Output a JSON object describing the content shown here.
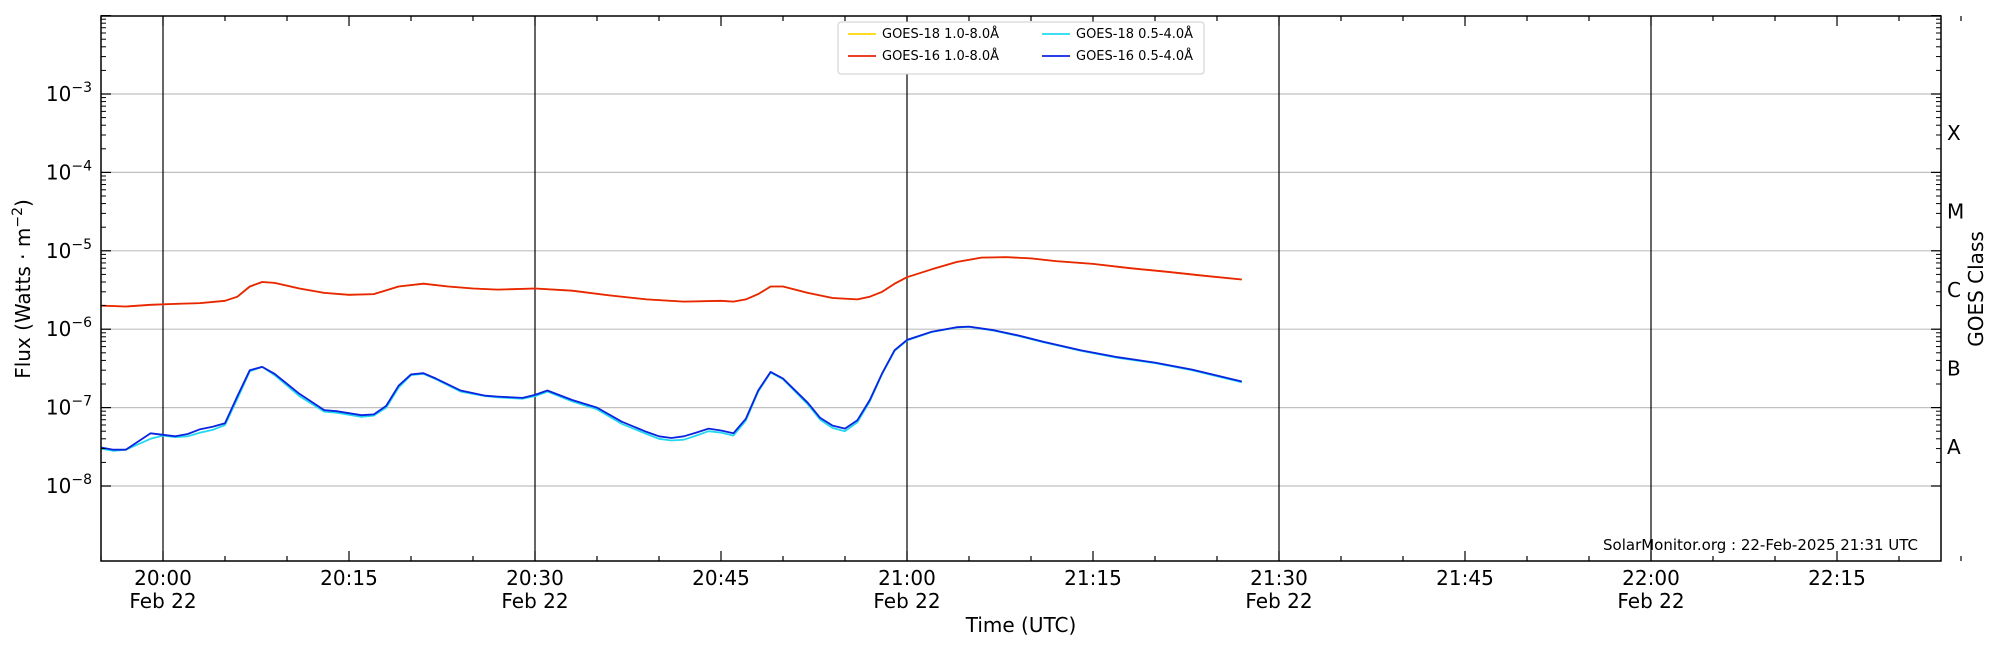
{
  "chart_data": {
    "type": "line",
    "xlabel": "Time (UTC)",
    "ylabel": "Flux (Watts · m⁻²)",
    "ylabel_right": "GOES Class",
    "y_scale": "log",
    "ylim": [
      1e-09,
      0.01
    ],
    "xlim": [
      "19:55",
      "22:25"
    ],
    "grid": "horizontal",
    "legend_position": "top-center",
    "credit": "SolarMonitor.org : 22-Feb-2025 21:31 UTC",
    "x_ticks": [
      {
        "time": "20:00",
        "date": "Feb 22"
      },
      {
        "time": "20:15",
        "date": ""
      },
      {
        "time": "20:30",
        "date": "Feb 22"
      },
      {
        "time": "20:45",
        "date": ""
      },
      {
        "time": "21:00",
        "date": "Feb 22"
      },
      {
        "time": "21:15",
        "date": ""
      },
      {
        "time": "21:30",
        "date": "Feb 22"
      },
      {
        "time": "21:45",
        "date": ""
      },
      {
        "time": "22:00",
        "date": "Feb 22"
      },
      {
        "time": "22:15",
        "date": ""
      }
    ],
    "vertical_lines": [
      "20:00",
      "20:30",
      "21:00",
      "21:30",
      "22:00"
    ],
    "y_ticks": [
      {
        "value": 1e-08,
        "mantissa": "10",
        "exp": "−8"
      },
      {
        "value": 1e-07,
        "mantissa": "10",
        "exp": "−7"
      },
      {
        "value": 1e-06,
        "mantissa": "10",
        "exp": "−6"
      },
      {
        "value": 1e-05,
        "mantissa": "10",
        "exp": "−5"
      },
      {
        "value": 0.0001,
        "mantissa": "10",
        "exp": "−4"
      },
      {
        "value": 0.001,
        "mantissa": "10",
        "exp": "−3"
      }
    ],
    "goes_classes": [
      {
        "label": "A",
        "value": 3.16e-08
      },
      {
        "label": "B",
        "value": 3.16e-07
      },
      {
        "label": "C",
        "value": 3.16e-06
      },
      {
        "label": "M",
        "value": 3.16e-05
      },
      {
        "label": "X",
        "value": 0.000316
      }
    ],
    "legend": [
      {
        "label": "GOES-18 1.0-8.0Å",
        "color": "#FFD700"
      },
      {
        "label": "GOES-16 1.0-8.0Å",
        "color": "#E8240A"
      },
      {
        "label": "GOES-18 0.5-4.0Å",
        "color": "#22D8F0"
      },
      {
        "label": "GOES-16 0.5-4.0Å",
        "color": "#0A24E0"
      }
    ],
    "series": [
      {
        "name": "GOES-18 1.0-8.0Å",
        "color": "#FFD700",
        "x": [
          "19:55",
          "19:57",
          "19:59",
          "20:01",
          "20:03",
          "20:05",
          "20:06",
          "20:07",
          "20:08",
          "20:09",
          "20:11",
          "20:13",
          "20:15",
          "20:17",
          "20:19",
          "20:21",
          "20:23",
          "20:25",
          "20:27",
          "20:30",
          "20:33",
          "20:36",
          "20:39",
          "20:42",
          "20:45",
          "20:46",
          "20:47",
          "20:48",
          "20:49",
          "20:50",
          "20:52",
          "20:54",
          "20:56",
          "20:57",
          "20:58",
          "20:59",
          "21:00",
          "21:02",
          "21:04",
          "21:06",
          "21:08",
          "21:10",
          "21:12",
          "21:15",
          "21:18",
          "21:21",
          "21:24",
          "21:27"
        ],
        "values": [
          2e-06,
          1.95e-06,
          2.05e-06,
          2.1e-06,
          2.15e-06,
          2.3e-06,
          2.6e-06,
          3.5e-06,
          4e-06,
          3.9e-06,
          3.3e-06,
          2.9e-06,
          2.75e-06,
          2.8e-06,
          3.5e-06,
          3.8e-06,
          3.5e-06,
          3.3e-06,
          3.2e-06,
          3.3e-06,
          3.1e-06,
          2.7e-06,
          2.4e-06,
          2.25e-06,
          2.3e-06,
          2.25e-06,
          2.4e-06,
          2.8e-06,
          3.5e-06,
          3.5e-06,
          2.9e-06,
          2.5e-06,
          2.4e-06,
          2.6e-06,
          3e-06,
          3.8e-06,
          4.6e-06,
          5.8e-06,
          7.2e-06,
          8.2e-06,
          8.3e-06,
          8e-06,
          7.4e-06,
          6.8e-06,
          6e-06,
          5.4e-06,
          4.8e-06,
          4.3e-06
        ]
      },
      {
        "name": "GOES-16 1.0-8.0Å",
        "color": "#E8240A",
        "x": [
          "19:55",
          "19:57",
          "19:59",
          "20:01",
          "20:03",
          "20:05",
          "20:06",
          "20:07",
          "20:08",
          "20:09",
          "20:11",
          "20:13",
          "20:15",
          "20:17",
          "20:19",
          "20:21",
          "20:23",
          "20:25",
          "20:27",
          "20:30",
          "20:33",
          "20:36",
          "20:39",
          "20:42",
          "20:45",
          "20:46",
          "20:47",
          "20:48",
          "20:49",
          "20:50",
          "20:52",
          "20:54",
          "20:56",
          "20:57",
          "20:58",
          "20:59",
          "21:00",
          "21:02",
          "21:04",
          "21:06",
          "21:08",
          "21:10",
          "21:12",
          "21:15",
          "21:18",
          "21:21",
          "21:24",
          "21:27"
        ],
        "values": [
          2e-06,
          1.95e-06,
          2.05e-06,
          2.1e-06,
          2.15e-06,
          2.3e-06,
          2.6e-06,
          3.5e-06,
          4e-06,
          3.9e-06,
          3.3e-06,
          2.9e-06,
          2.75e-06,
          2.8e-06,
          3.5e-06,
          3.8e-06,
          3.5e-06,
          3.3e-06,
          3.2e-06,
          3.3e-06,
          3.1e-06,
          2.7e-06,
          2.4e-06,
          2.25e-06,
          2.3e-06,
          2.25e-06,
          2.4e-06,
          2.8e-06,
          3.5e-06,
          3.5e-06,
          2.9e-06,
          2.5e-06,
          2.4e-06,
          2.6e-06,
          3e-06,
          3.8e-06,
          4.6e-06,
          5.8e-06,
          7.2e-06,
          8.2e-06,
          8.3e-06,
          8e-06,
          7.4e-06,
          6.8e-06,
          6e-06,
          5.4e-06,
          4.8e-06,
          4.3e-06
        ]
      },
      {
        "name": "GOES-18 0.5-4.0Å",
        "color": "#22D8F0",
        "x": [
          "19:55",
          "19:56",
          "19:57",
          "19:59",
          "20:00",
          "20:01",
          "20:02",
          "20:03",
          "20:04",
          "20:05",
          "20:06",
          "20:07",
          "20:08",
          "20:09",
          "20:11",
          "20:13",
          "20:14",
          "20:16",
          "20:17",
          "20:18",
          "20:19",
          "20:20",
          "20:21",
          "20:22",
          "20:24",
          "20:26",
          "20:27",
          "20:29",
          "20:30",
          "20:31",
          "20:33",
          "20:35",
          "20:37",
          "20:39",
          "20:40",
          "20:41",
          "20:42",
          "20:43",
          "20:44",
          "20:45",
          "20:46",
          "20:47",
          "20:48",
          "20:49",
          "20:50",
          "20:52",
          "20:53",
          "20:54",
          "20:55",
          "20:56",
          "20:57",
          "20:58",
          "20:59",
          "21:00",
          "21:02",
          "21:04",
          "21:05",
          "21:07",
          "21:09",
          "21:11",
          "21:14",
          "21:17",
          "21:20",
          "21:23",
          "21:27"
        ],
        "values": [
          3e-08,
          2.8e-08,
          2.9e-08,
          4e-08,
          4.4e-08,
          4.2e-08,
          4.3e-08,
          4.8e-08,
          5.2e-08,
          6e-08,
          1.3e-07,
          2.9e-07,
          3.3e-07,
          2.6e-07,
          1.4e-07,
          8.9e-08,
          8.6e-08,
          7.6e-08,
          7.9e-08,
          1e-07,
          1.8e-07,
          2.6e-07,
          2.7e-07,
          2.3e-07,
          1.6e-07,
          1.4e-07,
          1.35e-07,
          1.3e-07,
          1.4e-07,
          1.6e-07,
          1.2e-07,
          9.5e-08,
          6.2e-08,
          4.6e-08,
          4e-08,
          3.8e-08,
          3.9e-08,
          4.4e-08,
          5e-08,
          4.8e-08,
          4.4e-08,
          6.8e-08,
          1.6e-07,
          2.8e-07,
          2.3e-07,
          1.1e-07,
          7e-08,
          5.5e-08,
          5e-08,
          6.5e-08,
          1.2e-07,
          2.7e-07,
          5.3e-07,
          7.2e-07,
          9.2e-07,
          1.05e-06,
          1.07e-06,
          9.6e-07,
          8.2e-07,
          6.8e-07,
          5.3e-07,
          4.3e-07,
          3.7e-07,
          3e-07,
          2.1e-07
        ]
      },
      {
        "name": "GOES-16 0.5-4.0Å",
        "color": "#0A24E0",
        "x": [
          "19:55",
          "19:56",
          "19:57",
          "19:59",
          "20:00",
          "20:01",
          "20:02",
          "20:03",
          "20:04",
          "20:05",
          "20:06",
          "20:07",
          "20:08",
          "20:09",
          "20:11",
          "20:13",
          "20:14",
          "20:16",
          "20:17",
          "20:18",
          "20:19",
          "20:20",
          "20:21",
          "20:22",
          "20:24",
          "20:26",
          "20:27",
          "20:29",
          "20:30",
          "20:31",
          "20:33",
          "20:35",
          "20:37",
          "20:39",
          "20:40",
          "20:41",
          "20:42",
          "20:43",
          "20:44",
          "20:45",
          "20:46",
          "20:47",
          "20:48",
          "20:49",
          "20:50",
          "20:52",
          "20:53",
          "20:54",
          "20:55",
          "20:56",
          "20:57",
          "20:58",
          "20:59",
          "21:00",
          "21:02",
          "21:04",
          "21:05",
          "21:07",
          "21:09",
          "21:11",
          "21:14",
          "21:17",
          "21:20",
          "21:23",
          "21:27"
        ],
        "values": [
          3.1e-08,
          2.9e-08,
          2.9e-08,
          4.7e-08,
          4.5e-08,
          4.3e-08,
          4.6e-08,
          5.3e-08,
          5.7e-08,
          6.3e-08,
          1.4e-07,
          3e-07,
          3.3e-07,
          2.7e-07,
          1.5e-07,
          9.3e-08,
          9e-08,
          8e-08,
          8.2e-08,
          1.05e-07,
          1.9e-07,
          2.65e-07,
          2.75e-07,
          2.35e-07,
          1.65e-07,
          1.42e-07,
          1.38e-07,
          1.33e-07,
          1.45e-07,
          1.65e-07,
          1.25e-07,
          1e-07,
          6.6e-08,
          4.9e-08,
          4.3e-08,
          4.1e-08,
          4.3e-08,
          4.8e-08,
          5.4e-08,
          5.1e-08,
          4.7e-08,
          7.2e-08,
          1.65e-07,
          2.85e-07,
          2.35e-07,
          1.15e-07,
          7.4e-08,
          5.9e-08,
          5.4e-08,
          6.9e-08,
          1.25e-07,
          2.75e-07,
          5.4e-07,
          7.3e-07,
          9.3e-07,
          1.06e-06,
          1.08e-06,
          9.7e-07,
          8.3e-07,
          6.9e-07,
          5.4e-07,
          4.4e-07,
          3.75e-07,
          3.05e-07,
          2.15e-07
        ]
      }
    ]
  }
}
